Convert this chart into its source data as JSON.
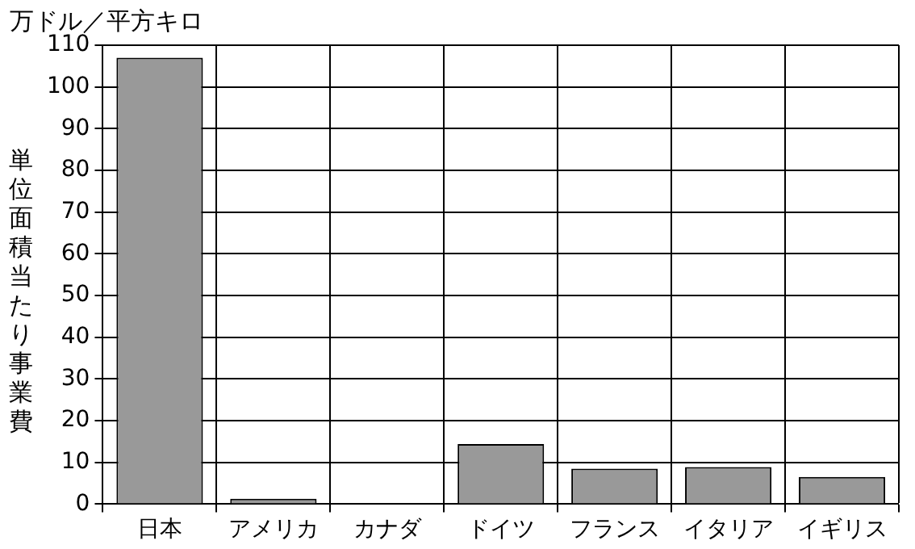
{
  "chart_data": {
    "type": "bar",
    "ylabel": "単位面積当たり事業費",
    "annotations": [
      "万ドル／平方キロ"
    ],
    "categories": [
      "日本",
      "アメリカ",
      "カナダ",
      "ドイツ",
      "フランス",
      "イタリア",
      "イギリス"
    ],
    "values": [
      107,
      1.3,
      0,
      14.4,
      8.5,
      8.9,
      6.5
    ],
    "color": "#999999",
    "ylim": [
      0,
      110
    ],
    "yticks": [
      0,
      10,
      20,
      30,
      40,
      50,
      60,
      70,
      80,
      90,
      100,
      110
    ],
    "grid": true,
    "legend": false
  }
}
